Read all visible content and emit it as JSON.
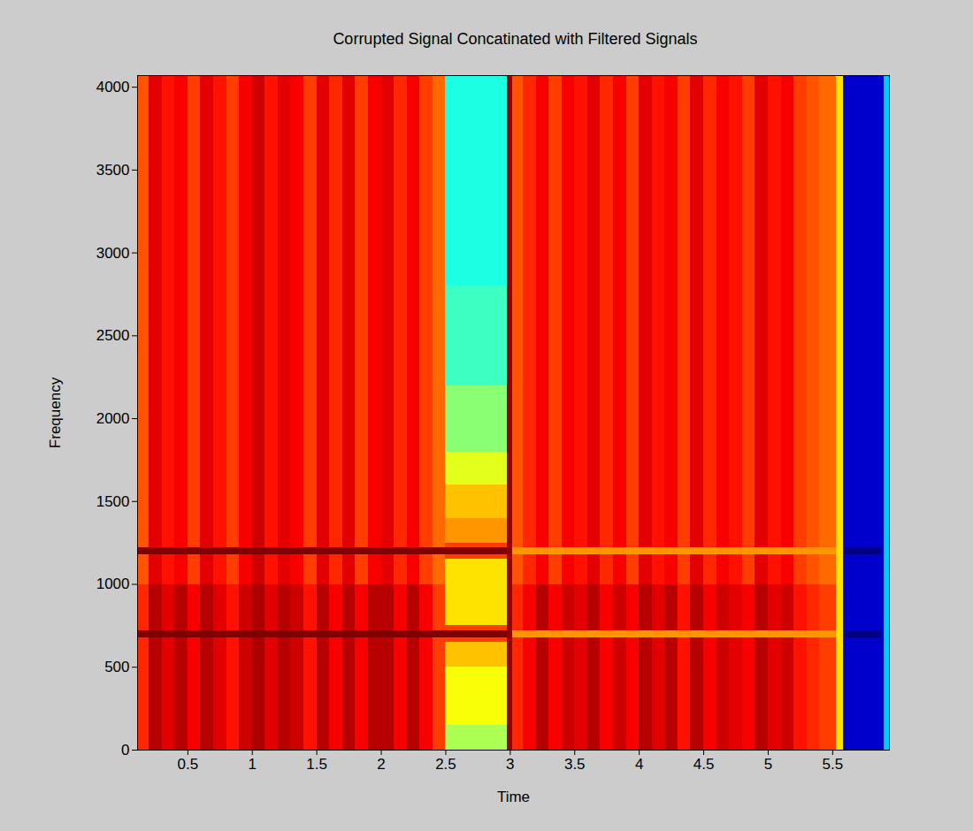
{
  "chart_data": {
    "type": "heatmap",
    "title": "Corrupted Signal Concatinated with Filtered Signals",
    "x_label": "Time",
    "y_label": "Frequency",
    "xlim": [
      0.11,
      5.94
    ],
    "ylim": [
      0,
      4070
    ],
    "xticks": [
      0.5,
      1,
      1.5,
      2,
      2.5,
      3,
      3.5,
      4,
      4.5,
      5,
      5.5
    ],
    "yticks": [
      0,
      500,
      1000,
      1500,
      2000,
      2500,
      3000,
      3500,
      4000
    ],
    "cells": [
      {
        "time": [
          0.11,
          0.2
        ],
        "frequency": [
          1000,
          4070
        ],
        "value": 0.78
      },
      {
        "time": [
          0.11,
          0.2
        ],
        "frequency": [
          0,
          1000
        ],
        "value": 0.82
      },
      {
        "time": [
          0.2,
          0.3
        ],
        "frequency": [
          1000,
          4070
        ],
        "value": 0.88
      },
      {
        "time": [
          0.2,
          0.3
        ],
        "frequency": [
          0,
          1000
        ],
        "value": 0.92
      },
      {
        "time": [
          0.3,
          0.4
        ],
        "frequency": [
          1000,
          4070
        ],
        "value": 0.84
      },
      {
        "time": [
          0.3,
          0.4
        ],
        "frequency": [
          0,
          1000
        ],
        "value": 0.88
      },
      {
        "time": [
          0.4,
          0.5
        ],
        "frequency": [
          1000,
          4070
        ],
        "value": 0.86
      },
      {
        "time": [
          0.4,
          0.5
        ],
        "frequency": [
          0,
          1000
        ],
        "value": 0.92
      },
      {
        "time": [
          0.5,
          0.6
        ],
        "frequency": [
          1000,
          4070
        ],
        "value": 0.8
      },
      {
        "time": [
          0.5,
          0.6
        ],
        "frequency": [
          0,
          1000
        ],
        "value": 0.86
      },
      {
        "time": [
          0.6,
          0.7
        ],
        "frequency": [
          1000,
          4070
        ],
        "value": 0.88
      },
      {
        "time": [
          0.6,
          0.7
        ],
        "frequency": [
          0,
          1000
        ],
        "value": 0.92
      },
      {
        "time": [
          0.7,
          0.8
        ],
        "frequency": [
          1000,
          4070
        ],
        "value": 0.84
      },
      {
        "time": [
          0.7,
          0.8
        ],
        "frequency": [
          0,
          1000
        ],
        "value": 0.88
      },
      {
        "time": [
          0.8,
          0.9
        ],
        "frequency": [
          1000,
          4070
        ],
        "value": 0.8
      },
      {
        "time": [
          0.8,
          0.9
        ],
        "frequency": [
          0,
          1000
        ],
        "value": 0.84
      },
      {
        "time": [
          0.9,
          1.0
        ],
        "frequency": [
          1000,
          4070
        ],
        "value": 0.86
      },
      {
        "time": [
          0.9,
          1.0
        ],
        "frequency": [
          0,
          1000
        ],
        "value": 0.9
      },
      {
        "time": [
          1.0,
          1.1
        ],
        "frequency": [
          1000,
          4070
        ],
        "value": 0.9
      },
      {
        "time": [
          1.0,
          1.1
        ],
        "frequency": [
          0,
          1000
        ],
        "value": 0.93
      },
      {
        "time": [
          1.1,
          1.2
        ],
        "frequency": [
          1000,
          4070
        ],
        "value": 0.84
      },
      {
        "time": [
          1.1,
          1.2
        ],
        "frequency": [
          0,
          1000
        ],
        "value": 0.88
      },
      {
        "time": [
          1.2,
          1.3
        ],
        "frequency": [
          1000,
          4070
        ],
        "value": 0.88
      },
      {
        "time": [
          1.2,
          1.3
        ],
        "frequency": [
          0,
          1000
        ],
        "value": 0.92
      },
      {
        "time": [
          1.3,
          1.4
        ],
        "frequency": [
          1000,
          4070
        ],
        "value": 0.86
      },
      {
        "time": [
          1.3,
          1.4
        ],
        "frequency": [
          0,
          1000
        ],
        "value": 0.9
      },
      {
        "time": [
          1.4,
          1.5
        ],
        "frequency": [
          1000,
          4070
        ],
        "value": 0.8
      },
      {
        "time": [
          1.4,
          1.5
        ],
        "frequency": [
          0,
          1000
        ],
        "value": 0.84
      },
      {
        "time": [
          1.5,
          1.6
        ],
        "frequency": [
          1000,
          4070
        ],
        "value": 0.88
      },
      {
        "time": [
          1.5,
          1.6
        ],
        "frequency": [
          0,
          1000
        ],
        "value": 0.92
      },
      {
        "time": [
          1.6,
          1.7
        ],
        "frequency": [
          1000,
          4070
        ],
        "value": 0.82
      },
      {
        "time": [
          1.6,
          1.7
        ],
        "frequency": [
          0,
          1000
        ],
        "value": 0.86
      },
      {
        "time": [
          1.7,
          1.8
        ],
        "frequency": [
          1000,
          4070
        ],
        "value": 0.88
      },
      {
        "time": [
          1.7,
          1.8
        ],
        "frequency": [
          0,
          1000
        ],
        "value": 0.92
      },
      {
        "time": [
          1.8,
          1.9
        ],
        "frequency": [
          1000,
          4070
        ],
        "value": 0.8
      },
      {
        "time": [
          1.8,
          1.9
        ],
        "frequency": [
          0,
          1000
        ],
        "value": 0.86
      },
      {
        "time": [
          1.9,
          2.0
        ],
        "frequency": [
          1000,
          4070
        ],
        "value": 0.86
      },
      {
        "time": [
          1.9,
          2.0
        ],
        "frequency": [
          0,
          1000
        ],
        "value": 0.92
      },
      {
        "time": [
          2.0,
          2.1
        ],
        "frequency": [
          1000,
          4070
        ],
        "value": 0.88
      },
      {
        "time": [
          2.0,
          2.1
        ],
        "frequency": [
          0,
          1000
        ],
        "value": 0.92
      },
      {
        "time": [
          2.1,
          2.2
        ],
        "frequency": [
          1000,
          4070
        ],
        "value": 0.82
      },
      {
        "time": [
          2.1,
          2.2
        ],
        "frequency": [
          0,
          1000
        ],
        "value": 0.86
      },
      {
        "time": [
          2.2,
          2.3
        ],
        "frequency": [
          1000,
          4070
        ],
        "value": 0.86
      },
      {
        "time": [
          2.2,
          2.3
        ],
        "frequency": [
          0,
          1000
        ],
        "value": 0.92
      },
      {
        "time": [
          2.3,
          2.4
        ],
        "frequency": [
          1000,
          4070
        ],
        "value": 0.8
      },
      {
        "time": [
          2.3,
          2.4
        ],
        "frequency": [
          0,
          1000
        ],
        "value": 0.86
      },
      {
        "time": [
          2.4,
          2.5
        ],
        "frequency": [
          1000,
          4070
        ],
        "value": 0.76
      },
      {
        "time": [
          2.4,
          2.5
        ],
        "frequency": [
          0,
          1000
        ],
        "value": 0.8
      },
      {
        "time": [
          2.5,
          2.98
        ],
        "frequency": [
          0,
          150
        ],
        "value": 0.55
      },
      {
        "time": [
          2.5,
          2.98
        ],
        "frequency": [
          150,
          500
        ],
        "value": 0.62
      },
      {
        "time": [
          2.5,
          2.98
        ],
        "frequency": [
          500,
          650
        ],
        "value": 0.68
      },
      {
        "time": [
          2.5,
          2.98
        ],
        "frequency": [
          650,
          750
        ],
        "value": 0.8
      },
      {
        "time": [
          2.5,
          2.98
        ],
        "frequency": [
          750,
          1150
        ],
        "value": 0.65
      },
      {
        "time": [
          2.5,
          2.98
        ],
        "frequency": [
          1150,
          1250
        ],
        "value": 0.8
      },
      {
        "time": [
          2.5,
          2.98
        ],
        "frequency": [
          1250,
          1400
        ],
        "value": 0.72
      },
      {
        "time": [
          2.5,
          2.98
        ],
        "frequency": [
          1400,
          1600
        ],
        "value": 0.68
      },
      {
        "time": [
          2.5,
          2.98
        ],
        "frequency": [
          1600,
          1800
        ],
        "value": 0.6
      },
      {
        "time": [
          2.5,
          2.98
        ],
        "frequency": [
          1800,
          2200
        ],
        "value": 0.52
      },
      {
        "time": [
          2.5,
          2.98
        ],
        "frequency": [
          2200,
          2800
        ],
        "value": 0.45
      },
      {
        "time": [
          2.5,
          2.98
        ],
        "frequency": [
          2800,
          4070
        ],
        "value": 0.42
      },
      {
        "time": [
          0.11,
          2.98
        ],
        "frequency": [
          680,
          720
        ],
        "value": 0.97
      },
      {
        "time": [
          0.11,
          2.98
        ],
        "frequency": [
          1180,
          1220
        ],
        "value": 0.97
      },
      {
        "time": [
          2.98,
          3.02
        ],
        "frequency": [
          0,
          4070
        ],
        "value": 0.95
      },
      {
        "time": [
          3.02,
          3.1
        ],
        "frequency": [
          1000,
          4070
        ],
        "value": 0.78
      },
      {
        "time": [
          3.02,
          3.1
        ],
        "frequency": [
          0,
          1000
        ],
        "value": 0.82
      },
      {
        "time": [
          3.1,
          3.2
        ],
        "frequency": [
          1000,
          4070
        ],
        "value": 0.82
      },
      {
        "time": [
          3.1,
          3.2
        ],
        "frequency": [
          0,
          1000
        ],
        "value": 0.86
      },
      {
        "time": [
          3.2,
          3.3
        ],
        "frequency": [
          1000,
          4070
        ],
        "value": 0.86
      },
      {
        "time": [
          3.2,
          3.3
        ],
        "frequency": [
          0,
          1000
        ],
        "value": 0.92
      },
      {
        "time": [
          3.3,
          3.4
        ],
        "frequency": [
          1000,
          4070
        ],
        "value": 0.8
      },
      {
        "time": [
          3.3,
          3.4
        ],
        "frequency": [
          0,
          1000
        ],
        "value": 0.86
      },
      {
        "time": [
          3.4,
          3.5
        ],
        "frequency": [
          1000,
          4070
        ],
        "value": 0.86
      },
      {
        "time": [
          3.4,
          3.5
        ],
        "frequency": [
          0,
          1000
        ],
        "value": 0.9
      },
      {
        "time": [
          3.5,
          3.6
        ],
        "frequency": [
          1000,
          4070
        ],
        "value": 0.84
      },
      {
        "time": [
          3.5,
          3.6
        ],
        "frequency": [
          0,
          1000
        ],
        "value": 0.88
      },
      {
        "time": [
          3.6,
          3.7
        ],
        "frequency": [
          1000,
          4070
        ],
        "value": 0.88
      },
      {
        "time": [
          3.6,
          3.7
        ],
        "frequency": [
          0,
          1000
        ],
        "value": 0.92
      },
      {
        "time": [
          3.7,
          3.8
        ],
        "frequency": [
          1000,
          4070
        ],
        "value": 0.82
      },
      {
        "time": [
          3.7,
          3.8
        ],
        "frequency": [
          0,
          1000
        ],
        "value": 0.86
      },
      {
        "time": [
          3.8,
          3.9
        ],
        "frequency": [
          1000,
          4070
        ],
        "value": 0.86
      },
      {
        "time": [
          3.8,
          3.9
        ],
        "frequency": [
          0,
          1000
        ],
        "value": 0.9
      },
      {
        "time": [
          3.9,
          4.0
        ],
        "frequency": [
          1000,
          4070
        ],
        "value": 0.8
      },
      {
        "time": [
          3.9,
          4.0
        ],
        "frequency": [
          0,
          1000
        ],
        "value": 0.86
      },
      {
        "time": [
          4.0,
          4.1
        ],
        "frequency": [
          1000,
          4070
        ],
        "value": 0.88
      },
      {
        "time": [
          4.0,
          4.1
        ],
        "frequency": [
          0,
          1000
        ],
        "value": 0.92
      },
      {
        "time": [
          4.1,
          4.2
        ],
        "frequency": [
          1000,
          4070
        ],
        "value": 0.84
      },
      {
        "time": [
          4.1,
          4.2
        ],
        "frequency": [
          0,
          1000
        ],
        "value": 0.88
      },
      {
        "time": [
          4.2,
          4.3
        ],
        "frequency": [
          1000,
          4070
        ],
        "value": 0.86
      },
      {
        "time": [
          4.2,
          4.3
        ],
        "frequency": [
          0,
          1000
        ],
        "value": 0.92
      },
      {
        "time": [
          4.3,
          4.4
        ],
        "frequency": [
          1000,
          4070
        ],
        "value": 0.8
      },
      {
        "time": [
          4.3,
          4.4
        ],
        "frequency": [
          0,
          1000
        ],
        "value": 0.84
      },
      {
        "time": [
          4.4,
          4.5
        ],
        "frequency": [
          1000,
          4070
        ],
        "value": 0.88
      },
      {
        "time": [
          4.4,
          4.5
        ],
        "frequency": [
          0,
          1000
        ],
        "value": 0.92
      },
      {
        "time": [
          4.5,
          4.6
        ],
        "frequency": [
          1000,
          4070
        ],
        "value": 0.82
      },
      {
        "time": [
          4.5,
          4.6
        ],
        "frequency": [
          0,
          1000
        ],
        "value": 0.86
      },
      {
        "time": [
          4.6,
          4.7
        ],
        "frequency": [
          1000,
          4070
        ],
        "value": 0.86
      },
      {
        "time": [
          4.6,
          4.7
        ],
        "frequency": [
          0,
          1000
        ],
        "value": 0.9
      },
      {
        "time": [
          4.7,
          4.8
        ],
        "frequency": [
          1000,
          4070
        ],
        "value": 0.84
      },
      {
        "time": [
          4.7,
          4.8
        ],
        "frequency": [
          0,
          1000
        ],
        "value": 0.88
      },
      {
        "time": [
          4.8,
          4.9
        ],
        "frequency": [
          1000,
          4070
        ],
        "value": 0.8
      },
      {
        "time": [
          4.8,
          4.9
        ],
        "frequency": [
          0,
          1000
        ],
        "value": 0.86
      },
      {
        "time": [
          4.9,
          5.0
        ],
        "frequency": [
          1000,
          4070
        ],
        "value": 0.88
      },
      {
        "time": [
          4.9,
          5.0
        ],
        "frequency": [
          0,
          1000
        ],
        "value": 0.92
      },
      {
        "time": [
          5.0,
          5.1
        ],
        "frequency": [
          1000,
          4070
        ],
        "value": 0.84
      },
      {
        "time": [
          5.0,
          5.1
        ],
        "frequency": [
          0,
          1000
        ],
        "value": 0.88
      },
      {
        "time": [
          5.1,
          5.2
        ],
        "frequency": [
          1000,
          4070
        ],
        "value": 0.86
      },
      {
        "time": [
          5.1,
          5.2
        ],
        "frequency": [
          0,
          1000
        ],
        "value": 0.9
      },
      {
        "time": [
          5.2,
          5.3
        ],
        "frequency": [
          1000,
          4070
        ],
        "value": 0.8
      },
      {
        "time": [
          5.2,
          5.3
        ],
        "frequency": [
          0,
          1000
        ],
        "value": 0.84
      },
      {
        "time": [
          5.3,
          5.4
        ],
        "frequency": [
          1000,
          4070
        ],
        "value": 0.78
      },
      {
        "time": [
          5.3,
          5.4
        ],
        "frequency": [
          0,
          1000
        ],
        "value": 0.82
      },
      {
        "time": [
          5.4,
          5.53
        ],
        "frequency": [
          1000,
          4070
        ],
        "value": 0.76
      },
      {
        "time": [
          5.4,
          5.53
        ],
        "frequency": [
          0,
          1000
        ],
        "value": 0.8
      },
      {
        "time": [
          3.02,
          5.53
        ],
        "frequency": [
          680,
          720
        ],
        "value": 0.72
      },
      {
        "time": [
          3.02,
          5.53
        ],
        "frequency": [
          1180,
          1220
        ],
        "value": 0.72
      },
      {
        "time": [
          5.53,
          5.58
        ],
        "frequency": [
          0,
          4070
        ],
        "value": 0.65
      },
      {
        "time": [
          5.58,
          5.9
        ],
        "frequency": [
          0,
          4070
        ],
        "value": 0.12
      },
      {
        "time": [
          5.6,
          5.88
        ],
        "frequency": [
          680,
          720
        ],
        "value": 0.05
      },
      {
        "time": [
          5.6,
          5.88
        ],
        "frequency": [
          1180,
          1220
        ],
        "value": 0.05
      },
      {
        "time": [
          5.9,
          5.94
        ],
        "frequency": [
          0,
          4070
        ],
        "value": 0.35
      }
    ]
  }
}
